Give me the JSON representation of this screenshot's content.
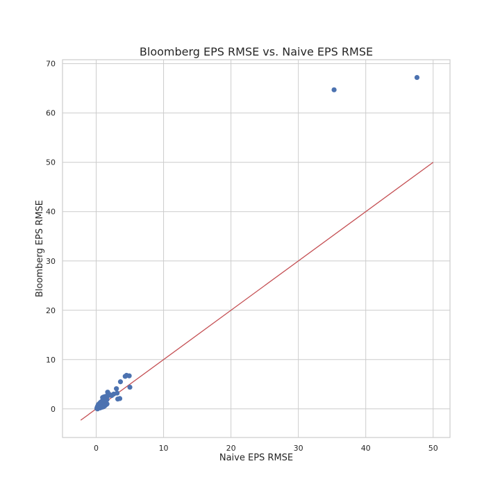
{
  "chart_data": {
    "type": "scatter",
    "title": "Bloomberg EPS RMSE vs. Naive EPS RMSE",
    "xlabel": "Naive EPS RMSE",
    "ylabel": "Bloomberg EPS RMSE",
    "xlim": [
      -5,
      52.5
    ],
    "ylim": [
      -5.8,
      70.8
    ],
    "xticks": [
      0,
      10,
      20,
      30,
      40,
      50
    ],
    "yticks": [
      0,
      10,
      20,
      30,
      40,
      50,
      60,
      70
    ],
    "grid": true,
    "colors": {
      "points": "#4c72b0",
      "line": "#c44e52",
      "grid": "#cccccc",
      "text": "#262626"
    },
    "reference_line": {
      "x": [
        -2.3,
        50
      ],
      "y": [
        -2.3,
        50
      ]
    },
    "series": [
      {
        "points": [
          [
            0.1,
            0.1
          ],
          [
            0.15,
            0.3
          ],
          [
            0.2,
            0.5
          ],
          [
            0.25,
            0.2
          ],
          [
            0.3,
            0.8
          ],
          [
            0.35,
            0.4
          ],
          [
            0.4,
            1.0
          ],
          [
            0.45,
            0.6
          ],
          [
            0.5,
            0.3
          ],
          [
            0.55,
            1.2
          ],
          [
            0.6,
            0.9
          ],
          [
            0.65,
            0.5
          ],
          [
            0.7,
            1.4
          ],
          [
            0.75,
            0.7
          ],
          [
            0.8,
            1.1
          ],
          [
            0.85,
            0.4
          ],
          [
            0.9,
            1.6
          ],
          [
            0.95,
            2.3
          ],
          [
            1.0,
            0.8
          ],
          [
            1.05,
            1.3
          ],
          [
            1.1,
            2.4
          ],
          [
            1.15,
            1.0
          ],
          [
            1.2,
            1.8
          ],
          [
            1.25,
            0.6
          ],
          [
            1.3,
            2.5
          ],
          [
            1.35,
            1.5
          ],
          [
            1.4,
            2.2
          ],
          [
            1.45,
            1.1
          ],
          [
            1.5,
            0.9
          ],
          [
            1.55,
            2.6
          ],
          [
            1.6,
            1.9
          ],
          [
            1.7,
            3.4
          ],
          [
            1.8,
            2.7
          ],
          [
            2.0,
            2.9
          ],
          [
            2.3,
            2.7
          ],
          [
            2.6,
            3.0
          ],
          [
            3.0,
            4.1
          ],
          [
            3.1,
            3.2
          ],
          [
            3.2,
            2.0
          ],
          [
            3.5,
            2.1
          ],
          [
            3.6,
            5.5
          ],
          [
            4.3,
            6.6
          ],
          [
            4.5,
            6.8
          ],
          [
            4.9,
            6.7
          ],
          [
            5.0,
            4.4
          ],
          [
            0.2,
            0.0
          ],
          [
            0.3,
            0.15
          ],
          [
            0.6,
            0.2
          ],
          [
            0.9,
            0.35
          ],
          [
            1.1,
            0.45
          ],
          [
            1.3,
            0.7
          ],
          [
            1.6,
            1.0
          ],
          [
            35.3,
            64.7
          ],
          [
            47.6,
            67.2
          ]
        ]
      }
    ]
  }
}
